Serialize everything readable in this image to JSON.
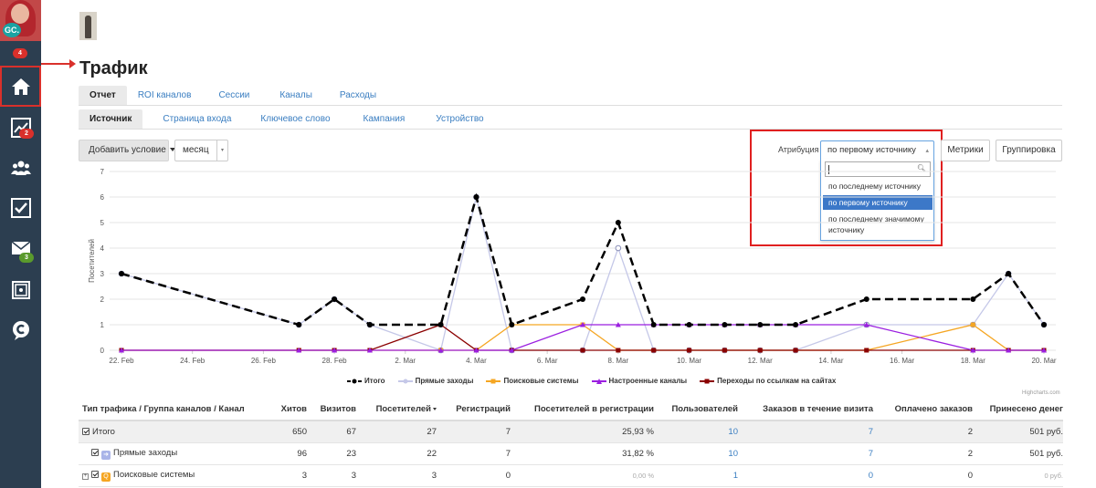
{
  "sidebar": {
    "avatar_initials": "GC.",
    "badges": {
      "notifications": "4",
      "analytics": "2",
      "mail": "3"
    },
    "items": [
      {
        "name": "home-icon"
      },
      {
        "name": "analytics-icon"
      },
      {
        "name": "users-icon"
      },
      {
        "name": "tasks-icon"
      },
      {
        "name": "mail-icon"
      },
      {
        "name": "safe-icon"
      },
      {
        "name": "chat-icon"
      }
    ],
    "accent": "#d9302b"
  },
  "page": {
    "title": "Трафик"
  },
  "tabs_primary": [
    "Отчет",
    "ROI каналов",
    "Сессии",
    "Каналы",
    "Расходы"
  ],
  "tabs_secondary": [
    "Источник",
    "Страница входа",
    "Ключевое слово",
    "Кампания",
    "Устройство"
  ],
  "toolbar": {
    "add_condition": "Добавить условие",
    "period": "месяц",
    "attribution_label": "Атрибуция",
    "attribution_value": "по первому источнику",
    "metrics": "Метрики",
    "grouping": "Группировка"
  },
  "attribution_dropdown": {
    "options": [
      "по последнему источнику",
      "по первому источнику",
      "по последнему значимому источнику"
    ],
    "selected": "по первому источнику"
  },
  "chart_data": {
    "type": "line",
    "ylabel": "Посетителей",
    "ylim": [
      0,
      7
    ],
    "yticks": [
      "0",
      "1",
      "2",
      "3",
      "4",
      "5",
      "6",
      "7"
    ],
    "xticks": [
      "22. Feb",
      "24. Feb",
      "26. Feb",
      "28. Feb",
      "2. Mar",
      "4. Mar",
      "6. Mar",
      "8. Mar",
      "10. Mar",
      "12. Mar",
      "14. Mar",
      "16. Mar",
      "18. Mar",
      "20. Mar"
    ],
    "x": [
      "22. Feb",
      "27. Feb",
      "28. Feb",
      "1. Mar",
      "3. Mar",
      "4. Mar",
      "5. Mar",
      "7. Mar",
      "8. Mar",
      "9. Mar",
      "10. Mar",
      "11. Mar",
      "12. Mar",
      "13. Mar",
      "15. Mar",
      "18. Mar",
      "19. Mar",
      "20. Mar"
    ],
    "series": [
      {
        "name": "Итого",
        "color": "#000000",
        "values": [
          3,
          1,
          2,
          1,
          1,
          6,
          1,
          2,
          5,
          1,
          1,
          1,
          1,
          1,
          2,
          2,
          3,
          1
        ]
      },
      {
        "name": "Прямые заходы",
        "color": "#c5c8e8",
        "values": [
          3,
          1,
          2,
          1,
          0,
          6,
          0,
          0,
          4,
          0,
          0,
          0,
          0,
          0,
          1,
          1,
          3,
          1
        ]
      },
      {
        "name": "Поисковые системы",
        "color": "#f5a623",
        "values": [
          0,
          0,
          0,
          0,
          0,
          0,
          1,
          1,
          0,
          0,
          0,
          0,
          0,
          0,
          0,
          1,
          0,
          0
        ]
      },
      {
        "name": "Настроенные каналы",
        "color": "#9b1fe0",
        "values": [
          0,
          0,
          0,
          0,
          0,
          0,
          0,
          1,
          1,
          1,
          1,
          1,
          1,
          1,
          1,
          0,
          0,
          0
        ]
      },
      {
        "name": "Переходы по ссылкам на сайтах",
        "color": "#8b0000",
        "values": [
          0,
          0,
          0,
          0,
          1,
          0,
          0,
          0,
          0,
          0,
          0,
          0,
          0,
          0,
          0,
          0,
          0,
          0
        ]
      }
    ],
    "legend": "bottom-center",
    "credits": "Highcharts.com"
  },
  "table": {
    "headers": [
      "Тип трафика / Группа каналов / Канал",
      "Хитов",
      "Визитов",
      "Посетителей",
      "Регистраций",
      "Посетителей в регистрации",
      "Пользователей",
      "Заказов в течение визита",
      "Оплачено заказов",
      "Принесено денег"
    ],
    "rows": [
      {
        "label": "Итого",
        "cells": [
          "650",
          "67",
          "27",
          "7",
          "25,93 %",
          "10",
          "7",
          "2",
          "501 руб."
        ]
      },
      {
        "label": "Прямые заходы",
        "cells": [
          "96",
          "23",
          "22",
          "7",
          "31,82 %",
          "10",
          "7",
          "2",
          "501 руб."
        ]
      },
      {
        "label": "Поисковые системы",
        "cells": [
          "3",
          "3",
          "3",
          "0",
          "0,00 %",
          "1",
          "0",
          "0",
          "0 руб."
        ]
      }
    ]
  }
}
